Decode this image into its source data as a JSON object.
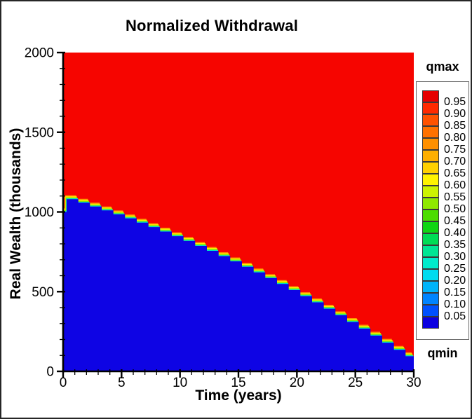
{
  "chart_data": {
    "type": "heatmap",
    "title": "Normalized Withdrawal",
    "xlabel": "Time (years)",
    "ylabel": "Real Wealth (thousands)",
    "xlim": [
      0,
      30
    ],
    "ylim": [
      0,
      2000
    ],
    "grid": false,
    "x_major_ticks": [
      0,
      5,
      10,
      15,
      20,
      25,
      30
    ],
    "x_minor_tick_step": 1,
    "y_major_ticks": [
      0,
      500,
      1000,
      1500,
      2000
    ],
    "y_minor_tick_step": 100,
    "axis_color": "#000000",
    "field": {
      "upper_region_value": "qmax",
      "upper_region_color": "#f60500",
      "lower_region_value": "qmin",
      "lower_region_color": "#0e04e4",
      "transition_band_colors": [
        "#ff9000",
        "#ffee00",
        "#86ea00",
        "#00e2c4"
      ]
    },
    "boundary_steps": [
      [
        0,
        1000
      ],
      [
        0.3,
        1080
      ],
      [
        1.3,
        1058
      ],
      [
        2.3,
        1034
      ],
      [
        3.3,
        1010
      ],
      [
        4.3,
        985
      ],
      [
        5.3,
        960
      ],
      [
        6.3,
        933
      ],
      [
        7.3,
        905
      ],
      [
        8.3,
        877
      ],
      [
        9.3,
        848
      ],
      [
        10.3,
        818
      ],
      [
        11.3,
        787
      ],
      [
        12.3,
        756
      ],
      [
        13.3,
        723
      ],
      [
        14.3,
        690
      ],
      [
        15.3,
        656
      ],
      [
        16.3,
        621
      ],
      [
        17.3,
        585
      ],
      [
        18.3,
        548
      ],
      [
        19.3,
        510
      ],
      [
        20.3,
        472
      ],
      [
        21.3,
        433
      ],
      [
        22.3,
        393
      ],
      [
        23.3,
        352
      ],
      [
        24.3,
        310
      ],
      [
        25.3,
        268
      ],
      [
        26.3,
        224
      ],
      [
        27.3,
        180
      ],
      [
        28.3,
        135
      ],
      [
        29.3,
        95
      ],
      [
        30,
        95
      ]
    ],
    "legend": {
      "position": "right",
      "qmax_label": "qmax",
      "qmin_label": "qmin",
      "level_labels": [
        "0.95",
        "0.90",
        "0.85",
        "0.80",
        "0.75",
        "0.70",
        "0.65",
        "0.60",
        "0.55",
        "0.50",
        "0.45",
        "0.40",
        "0.35",
        "0.30",
        "0.25",
        "0.20",
        "0.15",
        "0.10",
        "0.05"
      ],
      "band_colors_top_to_bottom": [
        "#e60000",
        "#ff2a00",
        "#ff5200",
        "#ff7100",
        "#ff9000",
        "#ffaf00",
        "#ffd000",
        "#fff300",
        "#ccf300",
        "#8fe900",
        "#4cdd00",
        "#0fd513",
        "#00dc55",
        "#00e694",
        "#00eccc",
        "#00dcf0",
        "#00b4fa",
        "#0084ff",
        "#0050ff",
        "#0c00e0"
      ]
    }
  }
}
